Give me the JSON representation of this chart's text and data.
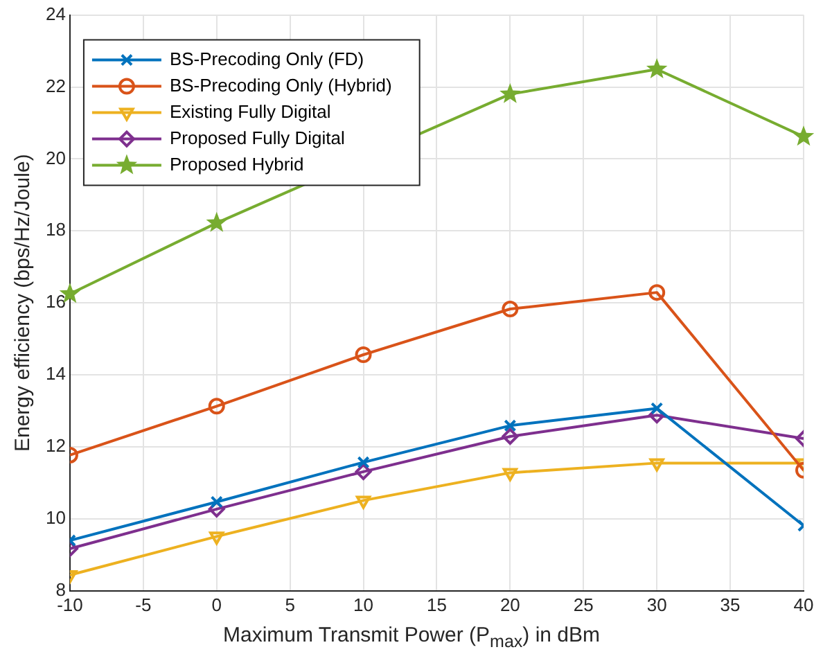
{
  "chart_data": {
    "type": "line",
    "xlabel": "Maximum Transmit Power (P$_{max}$) in dBm",
    "ylabel": "Energy efficiency (bps/Hz/Joule)",
    "x": [
      -10,
      0,
      10,
      20,
      30,
      40
    ],
    "xlim": [
      -10,
      40
    ],
    "xticks": [
      -10,
      -5,
      0,
      5,
      10,
      15,
      20,
      25,
      30,
      35,
      40
    ],
    "ylim": [
      8,
      24
    ],
    "yticks": [
      8,
      10,
      12,
      14,
      16,
      18,
      20,
      22,
      24
    ],
    "grid": true,
    "legend": "top left",
    "line_style": "solid",
    "series": [
      {
        "name": "BS-Precoding Only (FD)",
        "color": "#0072bd",
        "marker": "cross",
        "values": [
          9.4,
          10.47,
          11.57,
          12.59,
          13.07,
          9.81
        ]
      },
      {
        "name": "BS-Precoding Only (Hybrid)",
        "color": "#d95319",
        "marker": "circle",
        "values": [
          11.77,
          13.13,
          14.56,
          15.83,
          16.29,
          11.35
        ]
      },
      {
        "name": "Existing Fully Digital",
        "color": "#edb120",
        "marker": "triangle",
        "values": [
          8.44,
          9.51,
          10.51,
          11.28,
          11.55,
          11.55
        ]
      },
      {
        "name": "Proposed Fully Digital",
        "color": "#7e2f8e",
        "marker": "diamond",
        "values": [
          9.17,
          10.27,
          11.31,
          12.29,
          12.88,
          12.23
        ]
      },
      {
        "name": "Proposed Hybrid",
        "color": "#77ac30",
        "marker": "star",
        "values": [
          16.25,
          18.22,
          null,
          21.8,
          22.49,
          20.62
        ]
      }
    ]
  }
}
